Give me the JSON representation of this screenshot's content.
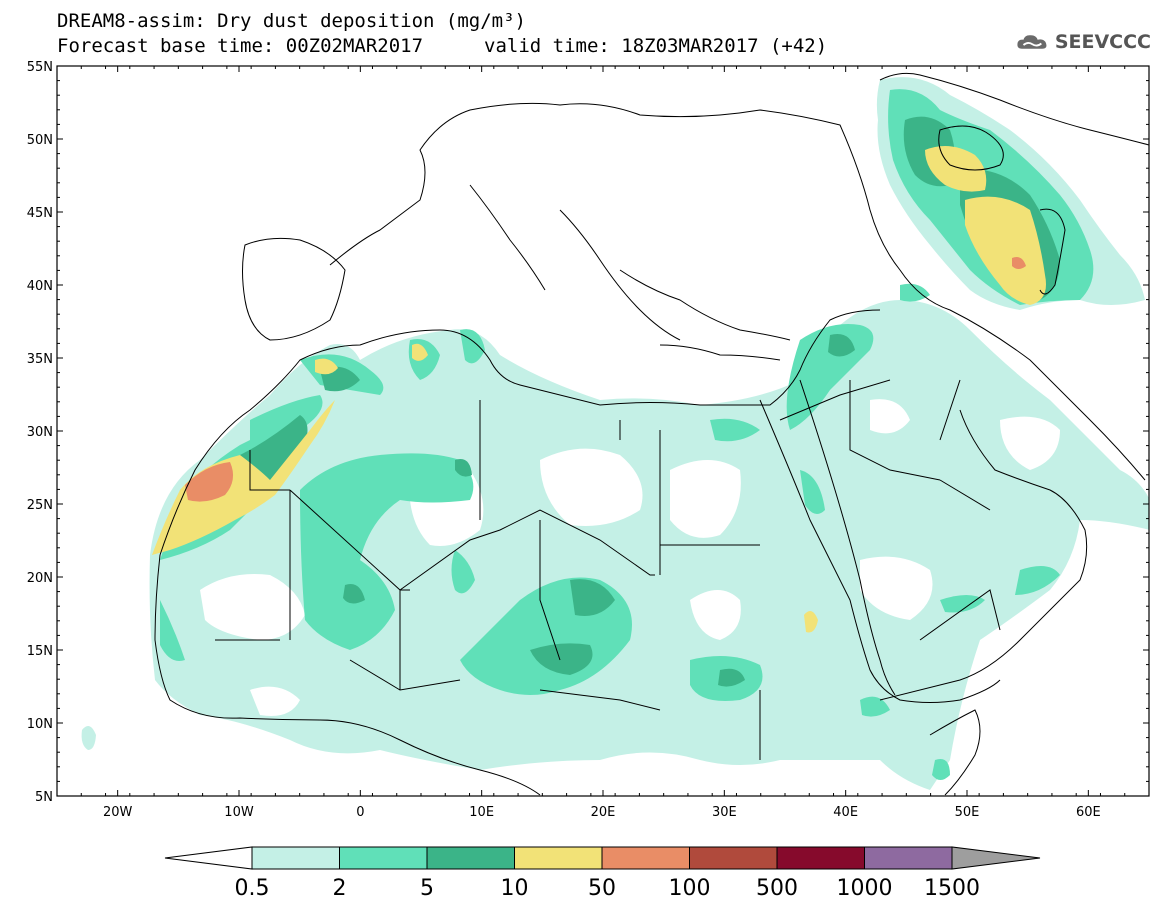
{
  "header": {
    "title_line1": "DREAM8-assim: Dry dust deposition (mg/m³)",
    "title_line2": "Forecast base time: 00Z02MAR2017",
    "valid_time": "valid time: 18Z03MAR2017 (+42)"
  },
  "logo": {
    "text": "SEEVCCC",
    "icon": "cloud-logo-icon"
  },
  "map": {
    "projection": "lat-lon",
    "lon_range": [
      -25,
      65
    ],
    "lat_range": [
      5,
      55
    ],
    "lat_labels": [
      "55N",
      "50N",
      "45N",
      "40N",
      "35N",
      "30N",
      "25N",
      "20N",
      "15N",
      "10N",
      "5N"
    ],
    "lon_labels": [
      "20W",
      "10W",
      "0",
      "10E",
      "20E",
      "30E",
      "40E",
      "50E",
      "60E"
    ],
    "field": "Dry dust deposition"
  },
  "colorbar": {
    "labels": [
      "0.5",
      "2",
      "5",
      "10",
      "50",
      "100",
      "500",
      "1000",
      "1500"
    ],
    "colors": [
      "#c4f0e6",
      "#60e0b8",
      "#3bb488",
      "#f2e277",
      "#e98d66",
      "#b04a3c",
      "#860a2c",
      "#8e6aa0"
    ],
    "under_color": "#ffffff",
    "over_color": "#9e9e9e"
  }
}
